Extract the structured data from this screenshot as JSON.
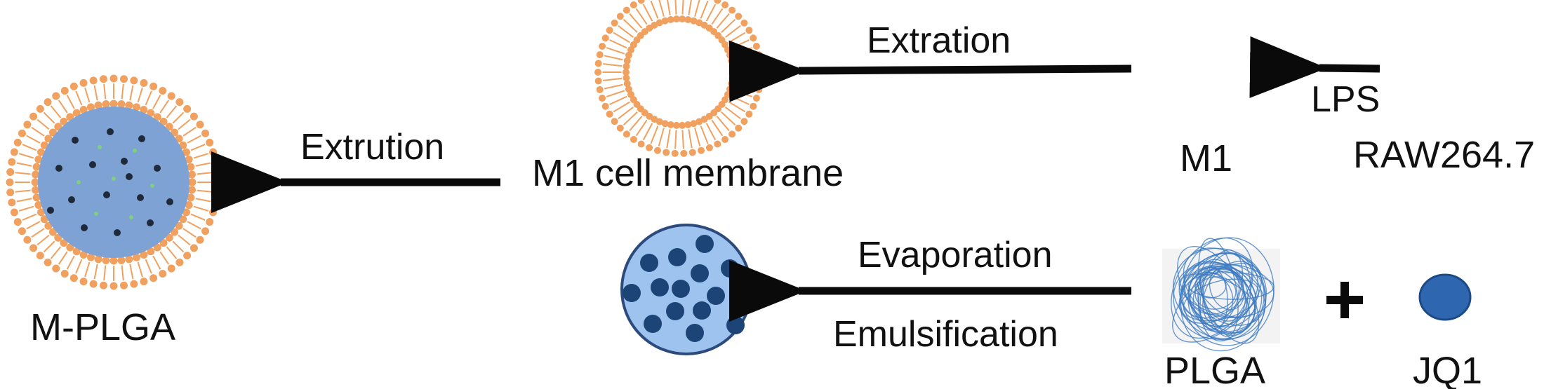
{
  "colors": {
    "text": "#111111",
    "arrow": "#0a0a0a",
    "lipid": "#f0a05f",
    "core": "#7ea2d3",
    "core_dark": "#2c4b7a",
    "drug_dot": "#1e2a3a",
    "green_dot": "#7ecf7e",
    "nano_fill": "#9fc3ef",
    "nano_stroke": "#2c4a7c",
    "nano_dot": "#1d4476",
    "plga_bg": "#f3f3f3",
    "plga_line": "#3a78c0",
    "jq1_fill": "#2e66b0",
    "jq1_stroke": "#1c4a86"
  },
  "labels": {
    "extration": "Extration",
    "lps": "LPS",
    "m1": "M1",
    "raw": "RAW264.7",
    "extrution": "Extrution",
    "membrane": "M1 cell membrane",
    "mplga": "M-PLGA",
    "evaporation": "Evaporation",
    "emulsification": "Emulsification",
    "plga": "PLGA",
    "jq1": "JQ1",
    "plus": "+"
  },
  "icons": {
    "membrane": "lipid-bilayer-vesicle-icon",
    "mplga": "membrane-coated-nanoparticle-icon",
    "nanoparticle": "plga-nanoparticle-icon",
    "plga": "polymer-coil-icon",
    "jq1": "jq1-molecule-icon"
  }
}
